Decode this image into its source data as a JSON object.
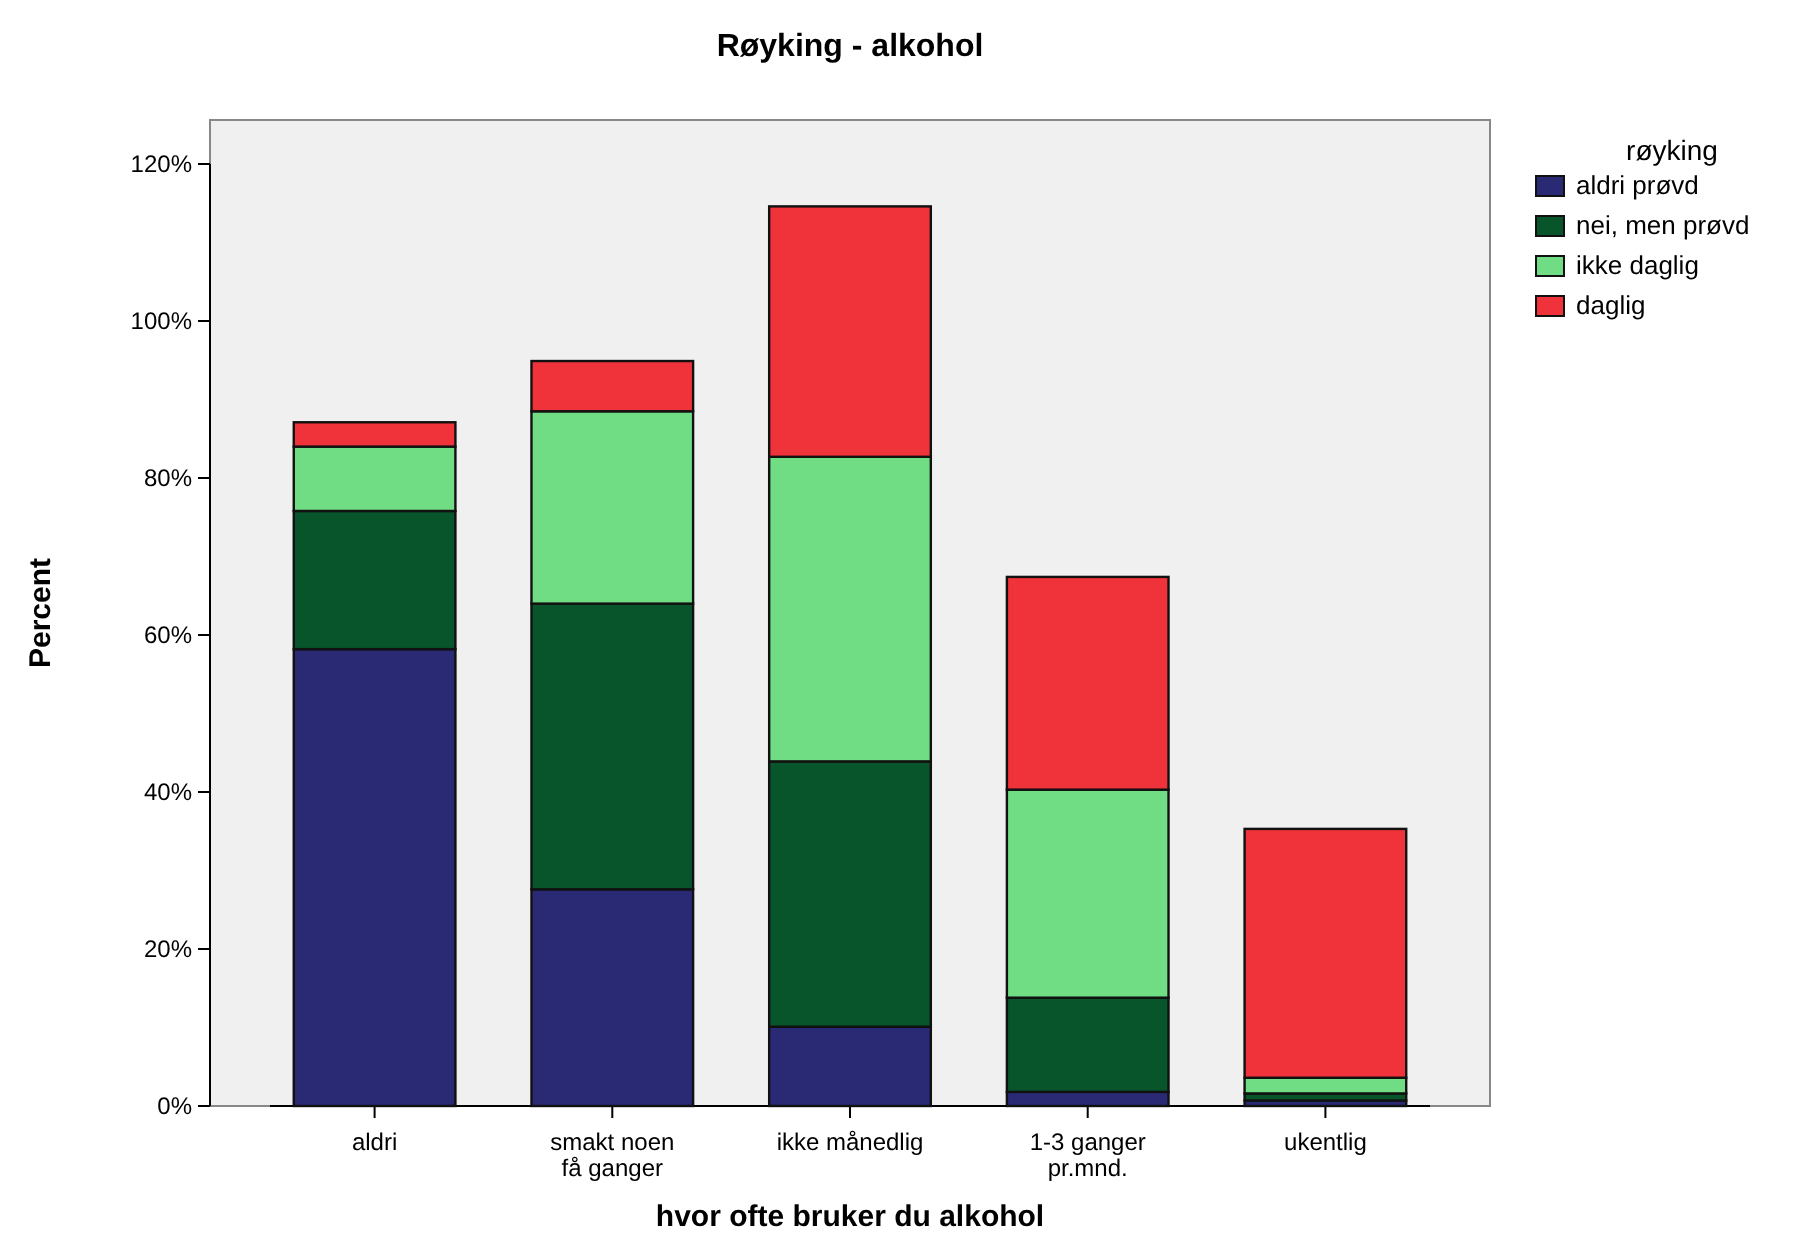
{
  "chart_data": {
    "type": "bar",
    "stacked": true,
    "title": "Røyking - alkohol",
    "xlabel": "hvor ofte bruker du alkohol",
    "ylabel": "Percent",
    "legend_title": "røyking",
    "legend": "top right",
    "grid": false,
    "categories": [
      "aldri",
      "smakt noen\nfå ganger",
      "ikke månedlig",
      "1-3 ganger\npr.mnd.",
      "ukentlig"
    ],
    "ylim": [
      0,
      120
    ],
    "yticks": [
      {
        "value": 0,
        "label": "0%"
      },
      {
        "value": 20,
        "label": "20%"
      },
      {
        "value": 40,
        "label": "40%"
      },
      {
        "value": 60,
        "label": "60%"
      },
      {
        "value": 80,
        "label": "80%"
      },
      {
        "value": 100,
        "label": "100%"
      },
      {
        "value": 120,
        "label": "120%"
      }
    ],
    "series": [
      {
        "name": "aldri prøvd",
        "color": "#292a73",
        "values": [
          58.2,
          27.6,
          10.1,
          1.8,
          0.7
        ]
      },
      {
        "name": "nei, men prøvd",
        "color": "#08552c",
        "values": [
          17.6,
          36.4,
          33.8,
          12.0,
          0.9
        ]
      },
      {
        "name": "ikke daglig",
        "color": "#70dd85",
        "values": [
          8.2,
          24.5,
          38.8,
          26.5,
          2.0
        ]
      },
      {
        "name": "daglig",
        "color": "#f0323a",
        "values": [
          3.1,
          6.4,
          31.9,
          27.1,
          31.7
        ]
      }
    ]
  }
}
